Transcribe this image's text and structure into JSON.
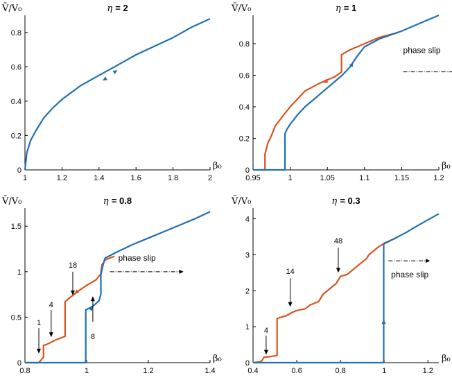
{
  "colors": {
    "up": "#1f6fb4",
    "down": "#d9531e",
    "axis": "#000000"
  },
  "chart_data": [
    {
      "type": "line",
      "title_var": "η",
      "title_val": "= 2",
      "ylabel": "V̄/V₀",
      "xlabel": "β₀",
      "xlim": [
        1,
        2
      ],
      "ylim": [
        0,
        0.9
      ],
      "xticks": [
        1,
        1.2,
        1.4,
        1.6,
        1.8,
        2
      ],
      "xtick_labels": [
        "1",
        "1.2",
        "1.4",
        "1.6",
        "1.8",
        "2"
      ],
      "yticks": [
        0,
        0.2,
        0.4,
        0.6,
        0.8
      ],
      "ytick_labels": [
        "0",
        "0.2",
        "0.4",
        "0.6",
        "0.8"
      ],
      "series": [
        {
          "role": "up",
          "x": [
            1,
            1.01,
            1.03,
            1.06,
            1.1,
            1.15,
            1.2,
            1.3,
            1.4,
            1.5,
            1.6,
            1.7,
            1.8,
            1.9,
            2.0
          ],
          "y": [
            0,
            0.1,
            0.17,
            0.23,
            0.3,
            0.36,
            0.41,
            0.49,
            0.55,
            0.61,
            0.67,
            0.72,
            0.77,
            0.83,
            0.88
          ]
        }
      ],
      "arrows": [
        {
          "x": 1.5,
          "y": 0.58,
          "dir": "up"
        },
        {
          "x": 1.42,
          "y": 0.52,
          "dir": "down"
        }
      ],
      "annotations": []
    },
    {
      "type": "line",
      "title_var": "η",
      "title_val": "= 1",
      "ylabel": "V̄/V₀",
      "xlabel": "β₀",
      "xlim": [
        0.95,
        1.2
      ],
      "ylim": [
        0,
        0.98
      ],
      "xticks": [
        0.95,
        1,
        1.05,
        1.1,
        1.15,
        1.2
      ],
      "xtick_labels": [
        "0.95",
        "1",
        "1.05",
        "1.1",
        "1.15",
        "1.2"
      ],
      "yticks": [
        0,
        0.2,
        0.4,
        0.6,
        0.8
      ],
      "ytick_labels": [
        "0",
        "0.2",
        "0.4",
        "0.6",
        "0.8"
      ],
      "series": [
        {
          "role": "up",
          "x": [
            0.95,
            0.993,
            0.993,
            0.996,
            1.0,
            1.005,
            1.01,
            1.02,
            1.03,
            1.04,
            1.05,
            1.06,
            1.07,
            1.08,
            1.09,
            1.1,
            1.12,
            1.15,
            1.2
          ],
          "y": [
            0,
            0,
            0.23,
            0.26,
            0.29,
            0.32,
            0.35,
            0.4,
            0.44,
            0.48,
            0.52,
            0.56,
            0.6,
            0.65,
            0.72,
            0.78,
            0.83,
            0.88,
            0.98
          ]
        },
        {
          "role": "down",
          "x": [
            1.145,
            1.12,
            1.1,
            1.08,
            1.069,
            1.069,
            1.06,
            1.04,
            1.02,
            1.01,
            1.0,
            0.99,
            0.98,
            0.975,
            0.97,
            0.966,
            0.966,
            0.958
          ],
          "y": [
            0.87,
            0.84,
            0.8,
            0.76,
            0.73,
            0.62,
            0.59,
            0.55,
            0.5,
            0.45,
            0.4,
            0.34,
            0.28,
            0.22,
            0.17,
            0.1,
            0,
            0
          ]
        }
      ],
      "arrows": [
        {
          "x": 1.085,
          "y": 0.68,
          "dir": "up"
        },
        {
          "x": 1.045,
          "y": 0.55,
          "dir": "down"
        }
      ],
      "annotations": [
        {
          "text": "phase slip",
          "x": 1.152,
          "y": 0.74
        }
      ]
    },
    {
      "type": "line",
      "title_var": "η",
      "title_val": "= 0.8",
      "ylabel": "V̄/V₀",
      "xlabel": "β₀",
      "xlim": [
        0.8,
        1.4
      ],
      "ylim": [
        0,
        1.7
      ],
      "xticks": [
        0.8,
        1,
        1.2,
        1.4
      ],
      "xtick_labels": [
        "0.8",
        "1",
        "1.2",
        "1.4"
      ],
      "yticks": [
        0,
        0.5,
        1,
        1.5
      ],
      "ytick_labels": [
        "0",
        "0.5",
        "1",
        "1.5"
      ],
      "series": [
        {
          "role": "up",
          "x": [
            0.8,
            0.997,
            0.997,
            1.02,
            1.04,
            1.046,
            1.046,
            1.055,
            1.06,
            1.1,
            1.15,
            1.2,
            1.25,
            1.3,
            1.35,
            1.4
          ],
          "y": [
            0,
            0,
            0.58,
            0.62,
            0.68,
            0.75,
            0.97,
            1.1,
            1.15,
            1.22,
            1.3,
            1.37,
            1.44,
            1.51,
            1.58,
            1.66
          ]
        },
        {
          "role": "down",
          "x": [
            1.09,
            1.06,
            1.055,
            1.05,
            1.045,
            1.04,
            1.03,
            1.0,
            0.97,
            0.94,
            0.93,
            0.93,
            0.9,
            0.87,
            0.86,
            0.86,
            0.85,
            0.845,
            0.8
          ],
          "y": [
            1.17,
            1.13,
            1.1,
            1.08,
            0.97,
            0.95,
            0.91,
            0.85,
            0.78,
            0.7,
            0.67,
            0.29,
            0.25,
            0.2,
            0.19,
            0.06,
            0.02,
            0,
            0
          ]
        }
      ],
      "arrows": [
        {
          "x": 1.02,
          "y": 0.62,
          "dir": "up"
        },
        {
          "x": 0.96,
          "y": 0.76,
          "dir": "down"
        }
      ],
      "annotations": [
        {
          "text": "phase slip",
          "x": 1.08,
          "y": 1.0
        }
      ],
      "markers": [
        {
          "label": "1",
          "x": 0.845
        },
        {
          "label": "4",
          "x": 0.885
        },
        {
          "label": "18",
          "x": 0.955
        },
        {
          "label": "8",
          "x": 1.02
        }
      ]
    },
    {
      "type": "line",
      "title_var": "η",
      "title_val": "= 0.3",
      "ylabel": "V̄/V₀",
      "xlabel": "β₀",
      "xlim": [
        0.4,
        1.25
      ],
      "ylim": [
        0,
        4.3
      ],
      "xticks": [
        0.4,
        0.6,
        0.8,
        1,
        1.2
      ],
      "xtick_labels": [
        "0.4",
        "0.6",
        "0.8",
        "1",
        "1.2"
      ],
      "yticks": [
        0,
        1,
        2,
        3,
        4
      ],
      "ytick_labels": [
        "0",
        "1",
        "2",
        "3",
        "4"
      ],
      "series": [
        {
          "role": "up",
          "x": [
            0.4,
            0.998,
            0.998,
            1.05,
            1.1,
            1.15,
            1.2,
            1.25
          ],
          "y": [
            0,
            0,
            3.3,
            3.46,
            3.62,
            3.8,
            3.97,
            4.14
          ]
        },
        {
          "role": "down",
          "x": [
            1.05,
            1.0,
            0.97,
            0.95,
            0.93,
            0.92,
            0.9,
            0.88,
            0.86,
            0.85,
            0.83,
            0.8,
            0.78,
            0.76,
            0.74,
            0.72,
            0.7,
            0.68,
            0.66,
            0.64,
            0.6,
            0.58,
            0.55,
            0.52,
            0.51,
            0.51,
            0.49,
            0.47,
            0.45,
            0.44,
            0.43,
            0.4
          ],
          "y": [
            3.46,
            3.32,
            3.2,
            3.1,
            3.0,
            2.9,
            2.8,
            2.7,
            2.6,
            2.55,
            2.45,
            2.4,
            2.2,
            2.1,
            2.0,
            1.9,
            1.7,
            1.65,
            1.6,
            1.5,
            1.45,
            1.4,
            1.3,
            1.25,
            1.22,
            0.2,
            0.18,
            0.16,
            0.15,
            0.05,
            0.02,
            0
          ]
        }
      ],
      "arrows": [
        {
          "x": 0.998,
          "y": 1.2,
          "dir": "up"
        }
      ],
      "annotations": [
        {
          "text": "phase slip",
          "x": 1.0,
          "y": 2.6
        }
      ],
      "markers": [
        {
          "label": "4",
          "x": 0.46
        },
        {
          "label": "14",
          "x": 0.57
        },
        {
          "label": "48",
          "x": 0.79
        }
      ]
    }
  ]
}
